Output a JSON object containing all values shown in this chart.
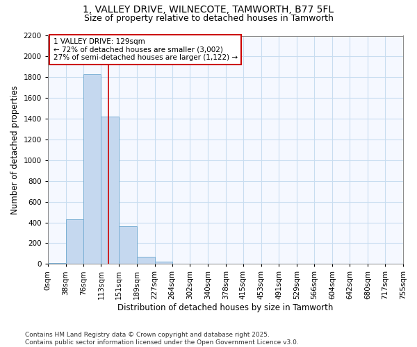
{
  "title_line1": "1, VALLEY DRIVE, WILNECOTE, TAMWORTH, B77 5FL",
  "title_line2": "Size of property relative to detached houses in Tamworth",
  "xlabel": "Distribution of detached houses by size in Tamworth",
  "ylabel": "Number of detached properties",
  "bar_color": "#c5d8ef",
  "bar_edge_color": "#7aafd4",
  "grid_color": "#c8ddf0",
  "background_color": "#ffffff",
  "plot_bg_color": "#f5f8ff",
  "bin_edges": [
    0,
    38,
    76,
    113,
    151,
    189,
    227,
    264,
    302,
    340,
    378,
    415,
    453,
    491,
    529,
    566,
    604,
    642,
    680,
    717,
    755
  ],
  "bin_labels": [
    "0sqm",
    "38sqm",
    "76sqm",
    "113sqm",
    "151sqm",
    "189sqm",
    "227sqm",
    "264sqm",
    "302sqm",
    "340sqm",
    "378sqm",
    "415sqm",
    "453sqm",
    "491sqm",
    "529sqm",
    "566sqm",
    "604sqm",
    "642sqm",
    "680sqm",
    "717sqm",
    "755sqm"
  ],
  "bar_heights": [
    10,
    430,
    1830,
    1420,
    360,
    70,
    25,
    5,
    0,
    0,
    0,
    0,
    0,
    0,
    0,
    0,
    0,
    0,
    0,
    0
  ],
  "property_size": 129,
  "vline_color": "#cc0000",
  "annotation_text": "1 VALLEY DRIVE: 129sqm\n← 72% of detached houses are smaller (3,002)\n27% of semi-detached houses are larger (1,122) →",
  "annotation_box_color": "#ffffff",
  "annotation_border_color": "#cc0000",
  "ylim": [
    0,
    2200
  ],
  "yticks": [
    0,
    200,
    400,
    600,
    800,
    1000,
    1200,
    1400,
    1600,
    1800,
    2000,
    2200
  ],
  "footer_line1": "Contains HM Land Registry data © Crown copyright and database right 2025.",
  "footer_line2": "Contains public sector information licensed under the Open Government Licence v3.0.",
  "title_fontsize": 10,
  "subtitle_fontsize": 9,
  "axis_label_fontsize": 8.5,
  "tick_fontsize": 7.5,
  "annotation_fontsize": 7.5,
  "footer_fontsize": 6.5
}
